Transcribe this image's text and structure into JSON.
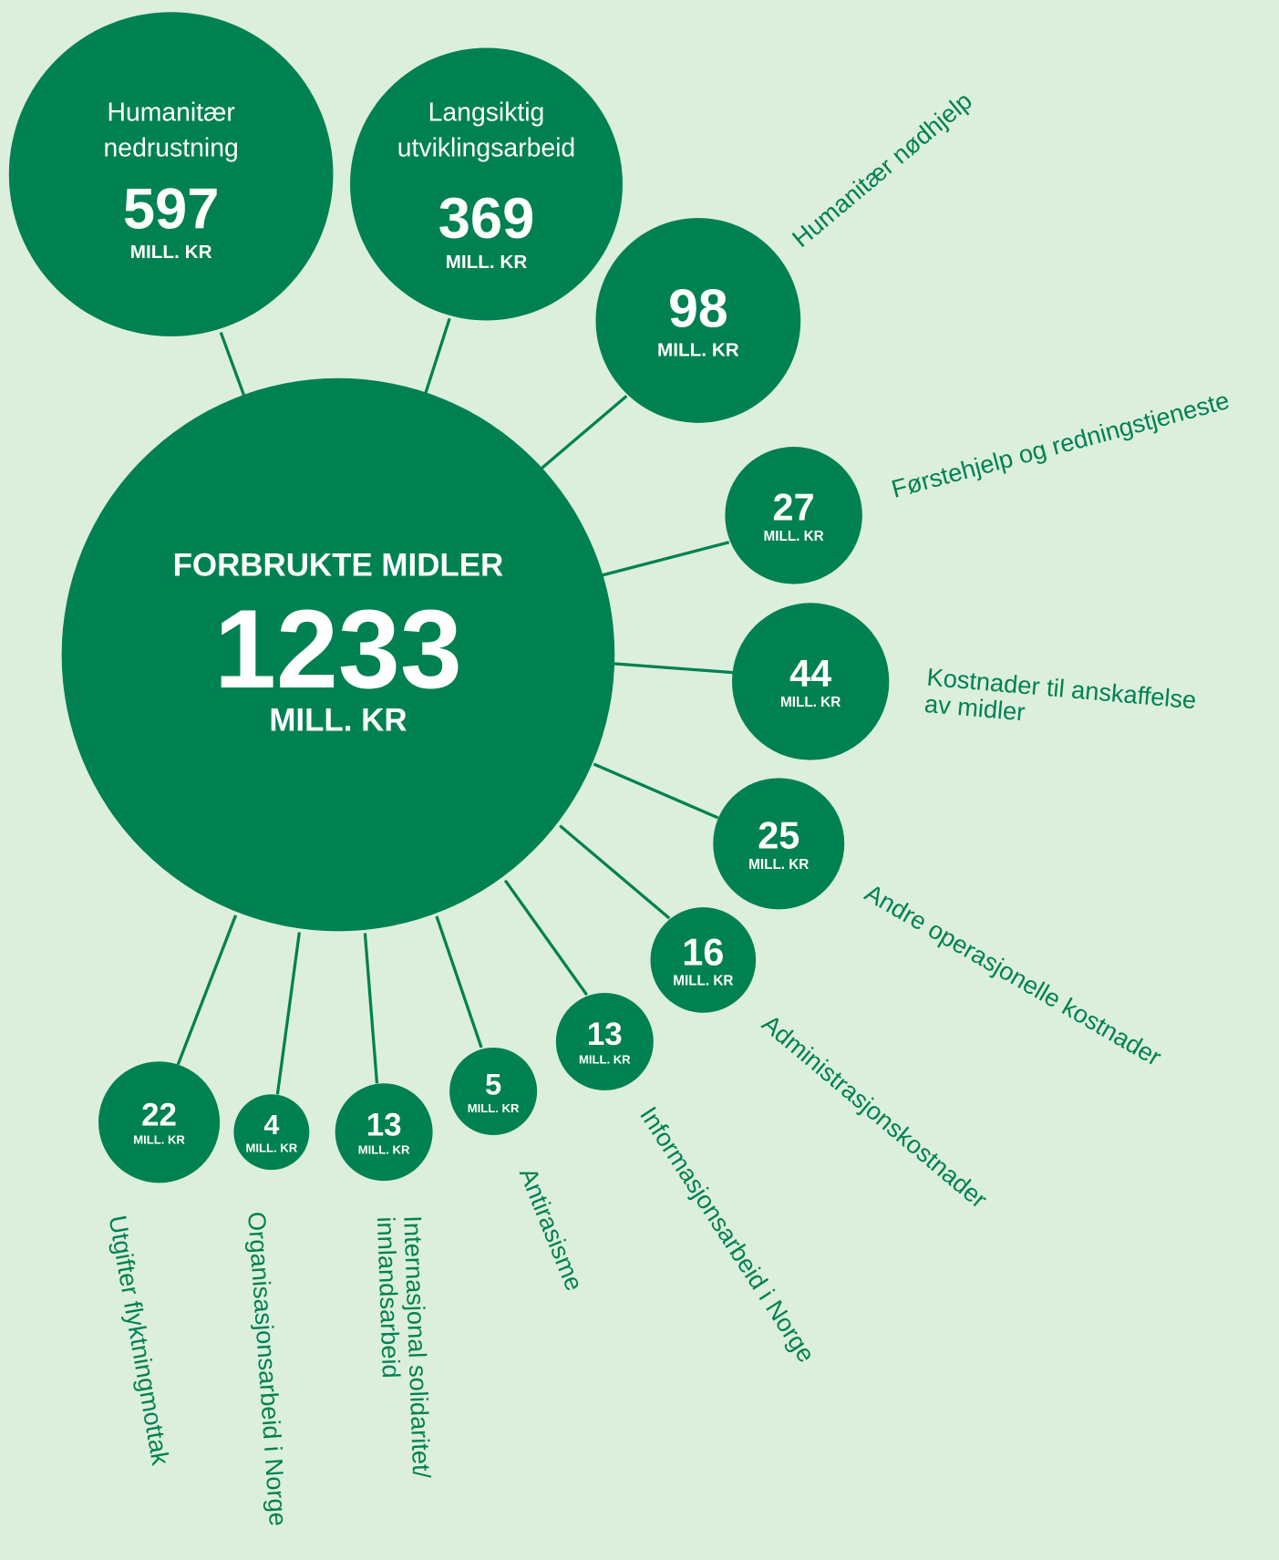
{
  "center": {
    "title": "FORBRUKTE MIDLER",
    "value": "1233",
    "unit": "MILL. KR"
  },
  "items": [
    {
      "label": [
        "Humanitær",
        "nedrustning"
      ],
      "value": "597",
      "unit": "MILL. KR"
    },
    {
      "label": [
        "Langsiktig",
        "utviklingsarbeid"
      ],
      "value": "369",
      "unit": "MILL. KR"
    },
    {
      "label": [
        "Humanitær nødhjelp"
      ],
      "value": "98",
      "unit": "MILL. KR"
    },
    {
      "label": [
        "Førstehjelp og redningstjeneste"
      ],
      "value": "27",
      "unit": "MILL. KR"
    },
    {
      "label": [
        "Kostnader til anskaffelse",
        "av midler"
      ],
      "value": "44",
      "unit": "MILL. KR"
    },
    {
      "label": [
        "Andre operasjonelle kostnader"
      ],
      "value": "25",
      "unit": "MILL. KR"
    },
    {
      "label": [
        "Administrasjonskostnader"
      ],
      "value": "16",
      "unit": "MILL. KR"
    },
    {
      "label": [
        "Informasjonsarbeid i Norge"
      ],
      "value": "13",
      "unit": "MILL. KR"
    },
    {
      "label": [
        "Antirasisme"
      ],
      "value": "5",
      "unit": "MILL. KR"
    },
    {
      "label": [
        "Internasjonal solidaritet/",
        "innlandsarbeid"
      ],
      "value": "13",
      "unit": "MILL. KR"
    },
    {
      "label": [
        "Organisasjonsarbeid i Norge"
      ],
      "value": "4",
      "unit": "MILL. KR"
    },
    {
      "label": [
        "Utgifter flyktningmottak"
      ],
      "value": "22",
      "unit": "MILL. KR"
    }
  ]
}
